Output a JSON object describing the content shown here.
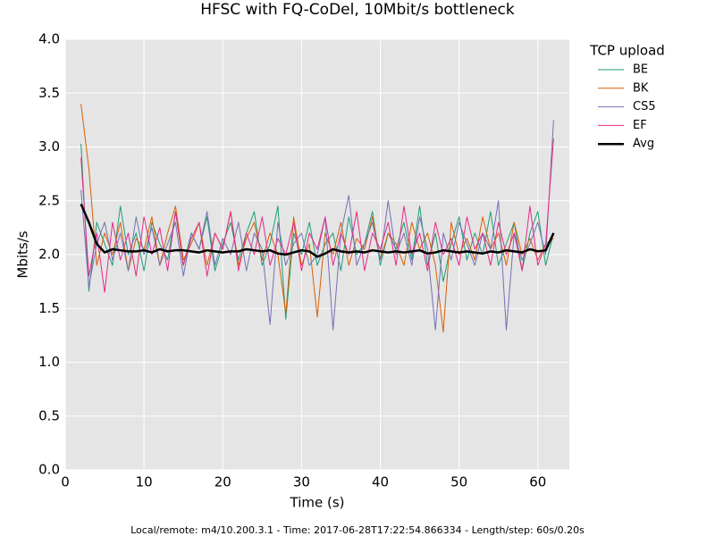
{
  "chart_data": {
    "type": "line",
    "title": "HFSC with FQ-CoDel, 10Mbit/s bottleneck",
    "xlabel": "Time (s)",
    "ylabel": "Mbits/s",
    "legend_title": "TCP upload",
    "legend": "outside-right",
    "grid": true,
    "footnote": "Local/remote: m4/10.200.3.1 - Time: 2017-06-28T17:22:54.866334 - Length/step: 60s/0.20s",
    "xlim": [
      0,
      64
    ],
    "ylim": [
      0,
      4
    ],
    "xticks": [
      0,
      10,
      20,
      30,
      40,
      50,
      60
    ],
    "yticks": [
      {
        "value": 0,
        "label": "0.0"
      },
      0.5,
      {
        "value": 1,
        "label": "1.0"
      },
      1.5,
      {
        "value": 2,
        "label": "2.0"
      },
      2.5,
      {
        "value": 3,
        "label": "3.0"
      },
      3.5,
      {
        "value": 4,
        "label": "4.0"
      }
    ],
    "x": [
      2,
      3,
      4,
      5,
      6,
      7,
      8,
      9,
      10,
      11,
      12,
      13,
      14,
      15,
      16,
      17,
      18,
      19,
      20,
      21,
      22,
      23,
      24,
      25,
      26,
      27,
      28,
      29,
      30,
      31,
      32,
      33,
      34,
      35,
      36,
      37,
      38,
      39,
      40,
      41,
      42,
      43,
      44,
      45,
      46,
      47,
      48,
      49,
      50,
      51,
      52,
      53,
      54,
      55,
      56,
      57,
      58,
      59,
      60,
      61,
      62
    ],
    "series": [
      {
        "name": "BE",
        "color": "#1b9e77",
        "width": 1,
        "values": [
          3.03,
          1.66,
          2.3,
          2.1,
          1.9,
          2.45,
          2.0,
          2.2,
          1.85,
          2.3,
          2.1,
          1.95,
          2.4,
          1.9,
          2.2,
          2.05,
          2.35,
          1.85,
          2.1,
          2.3,
          1.95,
          2.2,
          2.4,
          1.9,
          2.1,
          2.45,
          1.4,
          2.2,
          2.0,
          2.3,
          1.9,
          2.1,
          2.2,
          1.85,
          2.35,
          2.0,
          2.1,
          2.4,
          1.9,
          2.2,
          2.05,
          2.3,
          1.95,
          2.45,
          1.9,
          2.2,
          1.75,
          2.1,
          2.35,
          1.95,
          2.2,
          2.0,
          2.4,
          1.9,
          2.1,
          2.3,
          1.85,
          2.2,
          2.4,
          1.9,
          2.2
        ]
      },
      {
        "name": "BK",
        "color": "#d95f02",
        "width": 1,
        "values": [
          3.4,
          2.8,
          1.9,
          2.2,
          2.0,
          2.3,
          1.85,
          2.15,
          2.05,
          2.35,
          1.9,
          2.2,
          2.45,
          1.95,
          2.1,
          2.3,
          1.9,
          2.2,
          2.05,
          2.4,
          1.9,
          2.15,
          2.3,
          1.95,
          2.2,
          2.0,
          1.45,
          2.35,
          1.9,
          2.1,
          1.42,
          2.2,
          2.0,
          2.3,
          1.9,
          2.15,
          2.05,
          2.35,
          1.95,
          2.2,
          2.1,
          1.9,
          2.3,
          2.05,
          2.2,
          1.9,
          1.28,
          2.3,
          2.0,
          2.15,
          1.95,
          2.35,
          2.05,
          2.2,
          1.9,
          2.3,
          2.0,
          2.15,
          1.95,
          2.1,
          2.15
        ]
      },
      {
        "name": "CS5",
        "color": "#7570b3",
        "width": 1,
        "values": [
          2.6,
          1.7,
          2.1,
          2.3,
          1.95,
          2.2,
          1.85,
          2.35,
          2.0,
          2.25,
          1.9,
          2.1,
          2.3,
          1.8,
          2.2,
          2.05,
          2.4,
          1.9,
          2.15,
          2.0,
          2.3,
          1.85,
          2.2,
          2.05,
          1.35,
          2.3,
          1.9,
          2.1,
          2.2,
          1.9,
          2.0,
          2.35,
          1.3,
          2.2,
          2.55,
          1.9,
          2.1,
          2.3,
          1.95,
          2.5,
          2.0,
          2.2,
          1.9,
          2.35,
          2.05,
          1.3,
          2.2,
          1.95,
          2.3,
          2.1,
          1.9,
          2.2,
          2.05,
          2.5,
          1.3,
          2.2,
          1.95,
          2.1,
          2.3,
          2.0,
          3.25
        ]
      },
      {
        "name": "EF",
        "color": "#e7298a",
        "width": 1,
        "values": [
          2.9,
          1.8,
          2.2,
          1.65,
          2.3,
          1.95,
          2.2,
          1.8,
          2.35,
          2.0,
          2.25,
          1.85,
          2.4,
          1.9,
          2.15,
          2.3,
          1.8,
          2.2,
          2.05,
          2.4,
          1.85,
          2.2,
          2.0,
          2.35,
          1.9,
          2.15,
          2.0,
          2.3,
          1.85,
          2.2,
          2.05,
          2.35,
          1.9,
          2.2,
          2.0,
          2.4,
          1.85,
          2.2,
          2.05,
          2.3,
          1.9,
          2.45,
          2.0,
          2.2,
          1.85,
          2.3,
          2.0,
          2.15,
          1.9,
          2.35,
          2.05,
          2.2,
          1.9,
          2.3,
          2.0,
          2.2,
          1.85,
          2.45,
          1.9,
          2.1,
          3.08
        ]
      },
      {
        "name": "Avg",
        "color": "#000000",
        "width": 2.5,
        "values": [
          2.47,
          2.3,
          2.1,
          2.02,
          2.05,
          2.04,
          2.03,
          2.03,
          2.04,
          2.02,
          2.05,
          2.03,
          2.04,
          2.04,
          2.03,
          2.02,
          2.04,
          2.03,
          2.02,
          2.03,
          2.03,
          2.05,
          2.04,
          2.03,
          2.04,
          2.01,
          2.0,
          2.02,
          2.04,
          2.03,
          1.98,
          2.01,
          2.05,
          2.03,
          2.02,
          2.03,
          2.02,
          2.04,
          2.03,
          2.02,
          2.03,
          2.02,
          2.03,
          2.04,
          2.01,
          2.02,
          2.04,
          2.03,
          2.02,
          2.03,
          2.02,
          2.01,
          2.03,
          2.02,
          2.04,
          2.03,
          2.02,
          2.05,
          2.03,
          2.04,
          2.2
        ]
      }
    ]
  }
}
